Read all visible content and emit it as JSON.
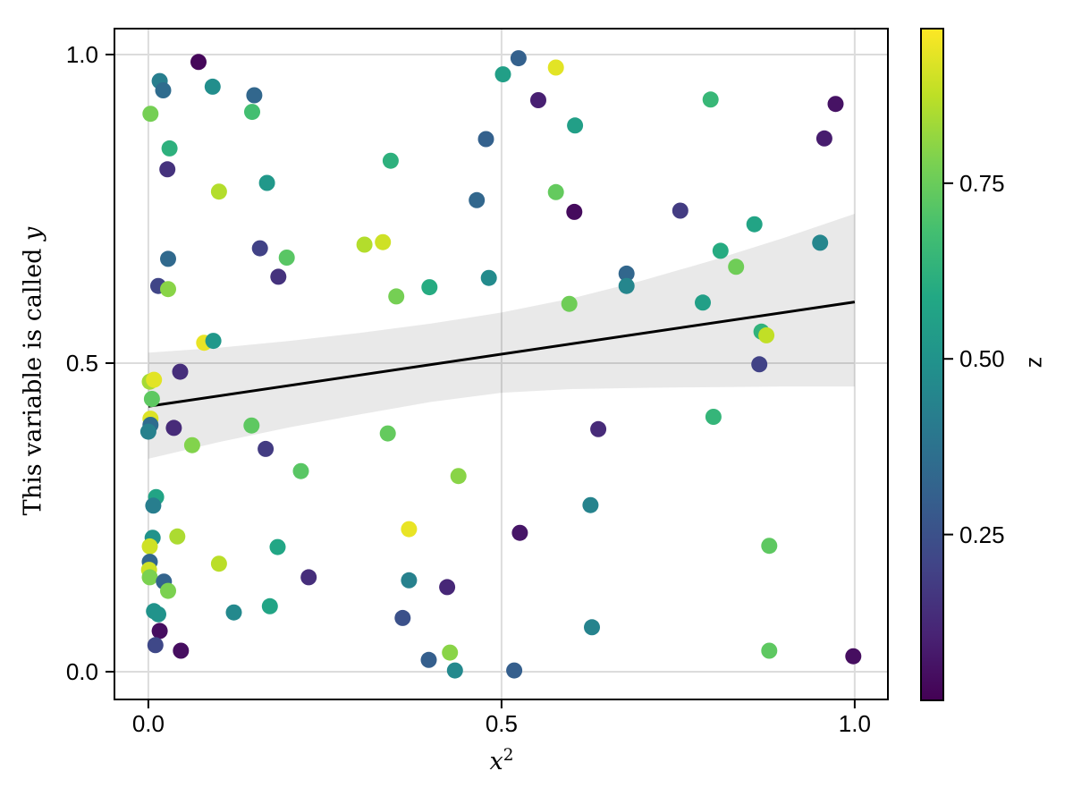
{
  "figure": {
    "background": "#ffffff"
  },
  "chart_data": {
    "type": "scatter",
    "title": "",
    "xlabel_base": "x",
    "xlabel_exponent": "2",
    "ylabel_prefix": "This variable is called ",
    "ylabel_var": "y",
    "colorbar_label": "z",
    "xlim": [
      -0.048,
      1.047
    ],
    "ylim": [
      -0.045,
      1.042
    ],
    "x_ticks": [
      0.0,
      0.5,
      1.0
    ],
    "x_tick_labels": [
      "0.0",
      "0.5",
      "1.0"
    ],
    "y_ticks": [
      0.0,
      0.5,
      1.0
    ],
    "y_tick_labels": [
      "0.0",
      "0.5",
      "1.0"
    ],
    "grid": true,
    "grid_color": "#dcdcdc",
    "spine_color": "#000000",
    "colormap": "viridis",
    "viridis_stops": [
      [
        0.0,
        "#440154"
      ],
      [
        0.1,
        "#482475"
      ],
      [
        0.2,
        "#414487"
      ],
      [
        0.3,
        "#355f8d"
      ],
      [
        0.4,
        "#2a788e"
      ],
      [
        0.5,
        "#21918c"
      ],
      [
        0.6,
        "#22a884"
      ],
      [
        0.7,
        "#44bf70"
      ],
      [
        0.8,
        "#7ad151"
      ],
      [
        0.9,
        "#bddf26"
      ],
      [
        1.0,
        "#fde725"
      ]
    ],
    "color_range": [
      0.014,
      0.97
    ],
    "colorbar_ticks": [
      0.25,
      0.5,
      0.75
    ],
    "colorbar_tick_labels": [
      "0.25",
      "0.50",
      "0.75"
    ],
    "regression_line": {
      "x": [
        0.0,
        1.0
      ],
      "y": [
        0.43,
        0.599
      ],
      "color": "#000000"
    },
    "confidence_band": {
      "fill": "rgba(0,0,0,0.085)",
      "x": [
        0.0,
        0.1,
        0.2,
        0.3,
        0.4,
        0.5,
        0.6,
        0.7,
        0.8,
        0.9,
        1.0
      ],
      "upper": [
        0.517,
        0.525,
        0.536,
        0.549,
        0.564,
        0.582,
        0.605,
        0.634,
        0.667,
        0.703,
        0.742
      ],
      "lower": [
        0.345,
        0.372,
        0.396,
        0.417,
        0.437,
        0.452,
        0.458,
        0.46,
        0.461,
        0.462,
        0.462
      ]
    },
    "marker_radius_px": 9,
    "points": [
      [
        0.071,
        0.988,
        0.03
      ],
      [
        0.016,
        0.957,
        0.42
      ],
      [
        0.021,
        0.942,
        0.35
      ],
      [
        0.091,
        0.948,
        0.48
      ],
      [
        0.15,
        0.934,
        0.33
      ],
      [
        0.003,
        0.904,
        0.77
      ],
      [
        0.147,
        0.907,
        0.68
      ],
      [
        0.03,
        0.848,
        0.62
      ],
      [
        0.027,
        0.814,
        0.15
      ],
      [
        0.168,
        0.792,
        0.52
      ],
      [
        0.1,
        0.778,
        0.86
      ],
      [
        0.158,
        0.686,
        0.2
      ],
      [
        0.306,
        0.692,
        0.86
      ],
      [
        0.524,
        0.994,
        0.31
      ],
      [
        0.577,
        0.979,
        0.93
      ],
      [
        0.502,
        0.968,
        0.55
      ],
      [
        0.552,
        0.926,
        0.1
      ],
      [
        0.604,
        0.885,
        0.55
      ],
      [
        0.478,
        0.863,
        0.31
      ],
      [
        0.343,
        0.828,
        0.62
      ],
      [
        0.577,
        0.777,
        0.74
      ],
      [
        0.603,
        0.745,
        0.04
      ],
      [
        0.465,
        0.764,
        0.33
      ],
      [
        0.332,
        0.696,
        0.9
      ],
      [
        0.796,
        0.927,
        0.65
      ],
      [
        0.973,
        0.92,
        0.06
      ],
      [
        0.957,
        0.864,
        0.09
      ],
      [
        0.753,
        0.747,
        0.18
      ],
      [
        0.858,
        0.725,
        0.57
      ],
      [
        0.951,
        0.695,
        0.45
      ],
      [
        0.81,
        0.682,
        0.6
      ],
      [
        0.028,
        0.669,
        0.34
      ],
      [
        0.196,
        0.671,
        0.72
      ],
      [
        0.184,
        0.64,
        0.15
      ],
      [
        0.014,
        0.625,
        0.21
      ],
      [
        0.028,
        0.62,
        0.8
      ],
      [
        0.079,
        0.533,
        0.94
      ],
      [
        0.092,
        0.536,
        0.52
      ],
      [
        0.045,
        0.486,
        0.14
      ],
      [
        0.002,
        0.47,
        0.84
      ],
      [
        0.008,
        0.473,
        0.93
      ],
      [
        0.005,
        0.442,
        0.73
      ],
      [
        0.003,
        0.41,
        0.92
      ],
      [
        0.003,
        0.4,
        0.35
      ],
      [
        0.0,
        0.389,
        0.43
      ],
      [
        0.036,
        0.395,
        0.13
      ],
      [
        0.146,
        0.399,
        0.73
      ],
      [
        0.062,
        0.367,
        0.79
      ],
      [
        0.166,
        0.361,
        0.18
      ],
      [
        0.216,
        0.325,
        0.72
      ],
      [
        0.482,
        0.638,
        0.47
      ],
      [
        0.398,
        0.623,
        0.6
      ],
      [
        0.351,
        0.608,
        0.77
      ],
      [
        0.677,
        0.645,
        0.33
      ],
      [
        0.677,
        0.625,
        0.45
      ],
      [
        0.596,
        0.596,
        0.76
      ],
      [
        0.339,
        0.386,
        0.74
      ],
      [
        0.637,
        0.393,
        0.13
      ],
      [
        0.439,
        0.317,
        0.8
      ],
      [
        0.832,
        0.656,
        0.76
      ],
      [
        0.785,
        0.598,
        0.55
      ],
      [
        0.868,
        0.551,
        0.63
      ],
      [
        0.875,
        0.545,
        0.88
      ],
      [
        0.865,
        0.498,
        0.2
      ],
      [
        0.8,
        0.413,
        0.64
      ],
      [
        0.011,
        0.283,
        0.57
      ],
      [
        0.007,
        0.269,
        0.42
      ],
      [
        0.006,
        0.217,
        0.5
      ],
      [
        0.041,
        0.219,
        0.85
      ],
      [
        0.002,
        0.203,
        0.9
      ],
      [
        0.002,
        0.178,
        0.33
      ],
      [
        0.001,
        0.165,
        0.9
      ],
      [
        0.002,
        0.153,
        0.78
      ],
      [
        0.022,
        0.146,
        0.32
      ],
      [
        0.028,
        0.131,
        0.78
      ],
      [
        0.1,
        0.175,
        0.87
      ],
      [
        0.183,
        0.202,
        0.58
      ],
      [
        0.227,
        0.153,
        0.14
      ],
      [
        0.008,
        0.098,
        0.5
      ],
      [
        0.014,
        0.093,
        0.5
      ],
      [
        0.121,
        0.096,
        0.46
      ],
      [
        0.172,
        0.106,
        0.57
      ],
      [
        0.016,
        0.066,
        0.05
      ],
      [
        0.01,
        0.043,
        0.22
      ],
      [
        0.046,
        0.034,
        0.05
      ],
      [
        0.626,
        0.27,
        0.44
      ],
      [
        0.369,
        0.231,
        0.94
      ],
      [
        0.526,
        0.225,
        0.07
      ],
      [
        0.369,
        0.148,
        0.43
      ],
      [
        0.423,
        0.137,
        0.12
      ],
      [
        0.36,
        0.087,
        0.25
      ],
      [
        0.628,
        0.072,
        0.44
      ],
      [
        0.427,
        0.031,
        0.8
      ],
      [
        0.397,
        0.019,
        0.3
      ],
      [
        0.434,
        0.002,
        0.46
      ],
      [
        0.518,
        0.002,
        0.3
      ],
      [
        0.879,
        0.204,
        0.73
      ],
      [
        0.879,
        0.034,
        0.73
      ],
      [
        0.998,
        0.025,
        0.05
      ]
    ]
  }
}
